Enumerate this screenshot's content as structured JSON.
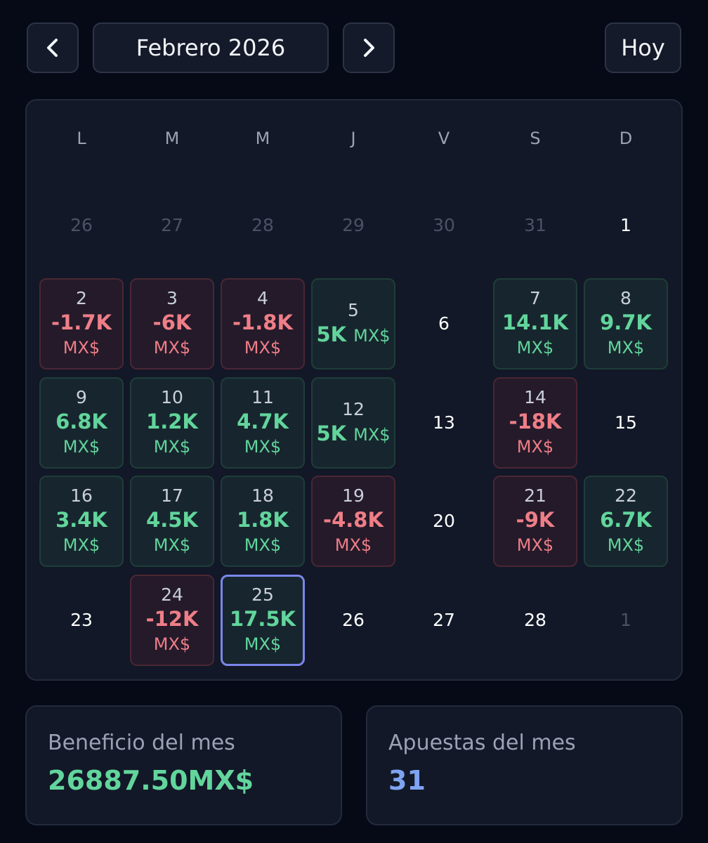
{
  "header": {
    "month_label": "Febrero 2026",
    "today_label": "Hoy",
    "prev_icon": "chevron-left-icon",
    "next_icon": "chevron-right-icon"
  },
  "weekdays": [
    "L",
    "M",
    "M",
    "J",
    "V",
    "S",
    "D"
  ],
  "days": [
    {
      "day": "26",
      "state": "muted"
    },
    {
      "day": "27",
      "state": "muted"
    },
    {
      "day": "28",
      "state": "muted"
    },
    {
      "day": "29",
      "state": "muted"
    },
    {
      "day": "30",
      "state": "muted"
    },
    {
      "day": "31",
      "state": "muted"
    },
    {
      "day": "1",
      "state": "plain"
    },
    {
      "day": "2",
      "state": "loss",
      "pnl": "-1.7K",
      "cur": "MX$"
    },
    {
      "day": "3",
      "state": "loss",
      "pnl": "-6K",
      "cur": "MX$"
    },
    {
      "day": "4",
      "state": "loss",
      "pnl": "-1.8K",
      "cur": "MX$"
    },
    {
      "day": "5",
      "state": "profit",
      "pnl": "5K",
      "cur": "MX$",
      "inline": true
    },
    {
      "day": "6",
      "state": "plain"
    },
    {
      "day": "7",
      "state": "profit",
      "pnl": "14.1K",
      "cur": "MX$"
    },
    {
      "day": "8",
      "state": "profit",
      "pnl": "9.7K",
      "cur": "MX$"
    },
    {
      "day": "9",
      "state": "profit",
      "pnl": "6.8K",
      "cur": "MX$"
    },
    {
      "day": "10",
      "state": "profit",
      "pnl": "1.2K",
      "cur": "MX$"
    },
    {
      "day": "11",
      "state": "profit",
      "pnl": "4.7K",
      "cur": "MX$"
    },
    {
      "day": "12",
      "state": "profit",
      "pnl": "5K",
      "cur": "MX$",
      "inline": true
    },
    {
      "day": "13",
      "state": "plain"
    },
    {
      "day": "14",
      "state": "loss",
      "pnl": "-18K",
      "cur": "MX$"
    },
    {
      "day": "15",
      "state": "plain"
    },
    {
      "day": "16",
      "state": "profit",
      "pnl": "3.4K",
      "cur": "MX$"
    },
    {
      "day": "17",
      "state": "profit",
      "pnl": "4.5K",
      "cur": "MX$"
    },
    {
      "day": "18",
      "state": "profit",
      "pnl": "1.8K",
      "cur": "MX$"
    },
    {
      "day": "19",
      "state": "loss",
      "pnl": "-4.8K",
      "cur": "MX$"
    },
    {
      "day": "20",
      "state": "plain"
    },
    {
      "day": "21",
      "state": "loss",
      "pnl": "-9K",
      "cur": "MX$"
    },
    {
      "day": "22",
      "state": "profit",
      "pnl": "6.7K",
      "cur": "MX$"
    },
    {
      "day": "23",
      "state": "plain"
    },
    {
      "day": "24",
      "state": "loss",
      "pnl": "-12K",
      "cur": "MX$"
    },
    {
      "day": "25",
      "state": "profit",
      "pnl": "17.5K",
      "cur": "MX$",
      "today": true
    },
    {
      "day": "26",
      "state": "plain"
    },
    {
      "day": "27",
      "state": "plain"
    },
    {
      "day": "28",
      "state": "plain"
    },
    {
      "day": "1",
      "state": "muted"
    }
  ],
  "stats": {
    "profit_label": "Beneficio del mes",
    "profit_value": "26887.50MX$",
    "bets_label": "Apuestas del mes",
    "bets_value": "31"
  },
  "colors": {
    "background": "#060a17",
    "profit": "#62d59c",
    "loss": "#ef7e87",
    "accent": "#7fa3f2",
    "today_border": "#7b86ea"
  }
}
